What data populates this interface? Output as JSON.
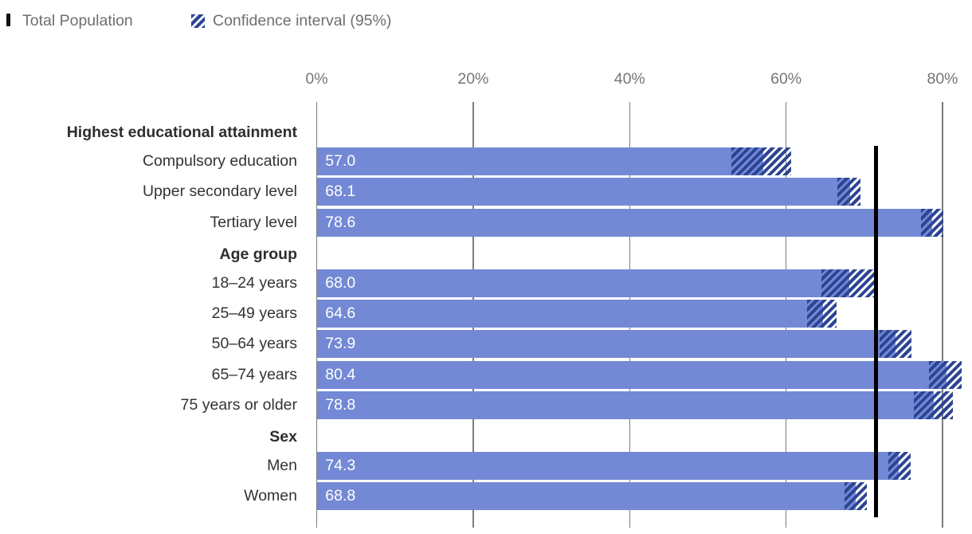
{
  "legend": {
    "total_population_label": "Total Population",
    "confidence_interval_label": "Confidence interval (95%)"
  },
  "colors": {
    "bar": "#7389d5",
    "hatch": "#2c4494",
    "reference_line": "#000000",
    "gridline": "#7d7d7d",
    "axis_text": "#767676",
    "label_text": "#333333",
    "value_text": "#ffffff",
    "legend_text": "#6f6f6f",
    "legend_marker": "#111111"
  },
  "chart_data": {
    "type": "bar",
    "orientation": "horizontal",
    "unit": "%",
    "title": "",
    "xlabel": "",
    "ylabel": "",
    "axis_range": [
      0,
      80
    ],
    "axis_ticks": [
      {
        "value": 0,
        "label": "0%"
      },
      {
        "value": 20,
        "label": "20%"
      },
      {
        "value": 40,
        "label": "40%"
      },
      {
        "value": 60,
        "label": "60%"
      },
      {
        "value": 80,
        "label": "80%"
      }
    ],
    "grid": true,
    "legend_position": "top-left",
    "reference_line": {
      "name": "Total Population",
      "value": 71.5
    },
    "groups": [
      {
        "header": "Highest educational attainment",
        "rows": [
          {
            "label": "Compulsory education",
            "value": 57.0,
            "ci_low": 53.0,
            "ci_high": 60.7
          },
          {
            "label": "Upper secondary level",
            "value": 68.1,
            "ci_low": 66.6,
            "ci_high": 69.5
          },
          {
            "label": "Tertiary level",
            "value": 78.6,
            "ci_low": 77.2,
            "ci_high": 80.1
          }
        ]
      },
      {
        "header": "Age group",
        "rows": [
          {
            "label": "18–24 years",
            "value": 68.0,
            "ci_low": 64.5,
            "ci_high": 71.3
          },
          {
            "label": "25–49 years",
            "value": 64.6,
            "ci_low": 62.7,
            "ci_high": 66.5
          },
          {
            "label": "50–64 years",
            "value": 73.9,
            "ci_low": 72.0,
            "ci_high": 76.0
          },
          {
            "label": "65–74 years",
            "value": 80.4,
            "ci_low": 78.3,
            "ci_high": 82.4
          },
          {
            "label": "75 years or older",
            "value": 78.8,
            "ci_low": 76.3,
            "ci_high": 81.3
          }
        ]
      },
      {
        "header": "Sex",
        "rows": [
          {
            "label": "Men",
            "value": 74.3,
            "ci_low": 73.1,
            "ci_high": 75.9
          },
          {
            "label": "Women",
            "value": 68.8,
            "ci_low": 67.5,
            "ci_high": 70.3
          }
        ]
      }
    ]
  }
}
